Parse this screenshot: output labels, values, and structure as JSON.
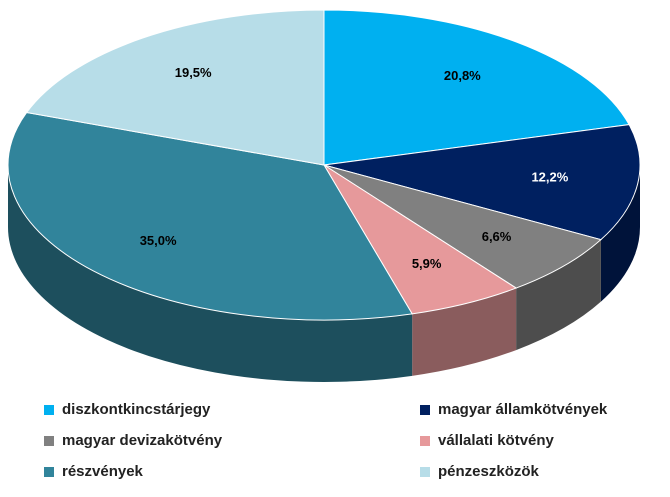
{
  "chart_data": {
    "type": "pie",
    "categories": [
      "diszkontkincstárjegy",
      "magyar államkötvények",
      "magyar devizakötvény",
      "vállalati kötvény",
      "részvények",
      "pénzeszközök"
    ],
    "values": [
      20.8,
      12.2,
      6.6,
      5.9,
      35.0,
      19.5
    ],
    "value_labels": [
      "20,8%",
      "12,2%",
      "6,6%",
      "5,9%",
      "35,0%",
      "19,5%"
    ],
    "colors": [
      "#00b0f0",
      "#002060",
      "#808080",
      "#e6999b",
      "#31849b",
      "#b7dde8"
    ]
  }
}
